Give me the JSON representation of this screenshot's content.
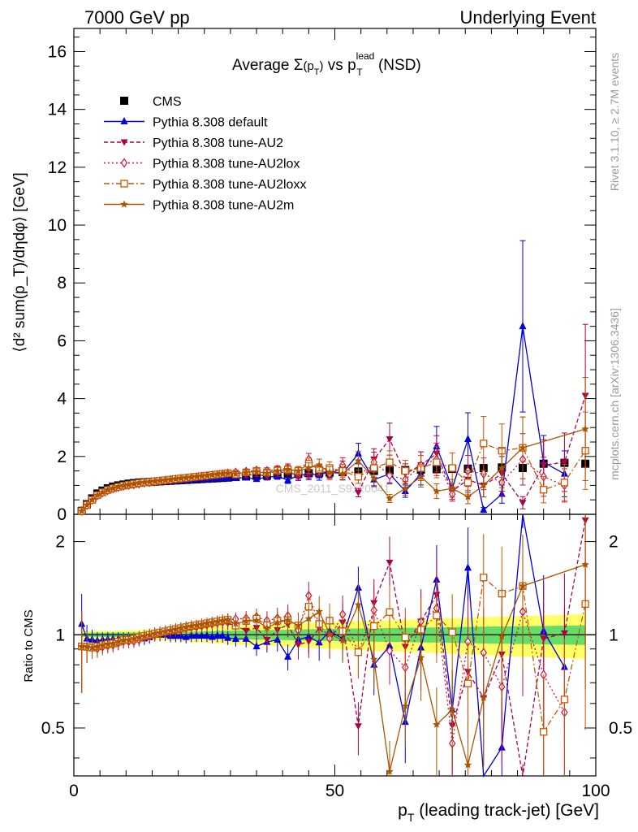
{
  "header": {
    "left": "7000 GeV pp",
    "right": "Underlying Event"
  },
  "side_labels": {
    "rivet": "Rivet 3.1.10, ≥ 2.7M events",
    "mcplots": "mcplots.cern.ch [arXiv:1306.3436]"
  },
  "chart_data": {
    "type": "scatter",
    "title": {
      "prefix": "Average ",
      "sigma": "Σ",
      "sigma_arg": "(p",
      "sigma_sub": "T",
      "sigma_close": ")",
      "vs": " vs p",
      "p_sup": "lead",
      "p_sub": "T",
      "suffix": " (NSD)"
    },
    "watermark": "CMS_2011_S9120041",
    "xlabel": {
      "main": "p",
      "sub": "T",
      "rest": " (leading track-jet) [GeV]"
    },
    "ylabel_main": "⟨d² sum(p_T)/dηdφ⟩ [GeV]",
    "ylabel_ratio": "Ratio to CMS",
    "xlim": [
      0,
      100
    ],
    "ylim_main": [
      0,
      16.8
    ],
    "ylim_ratio": [
      0.35,
      2.45
    ],
    "x_ticks": [
      "0",
      "50",
      "100"
    ],
    "y_ticks_main": [
      "0",
      "2",
      "4",
      "6",
      "8",
      "10",
      "12",
      "14",
      "16"
    ],
    "y_ticks_ratio": [
      "0.5",
      "1",
      "2"
    ],
    "legend_position": "top-left",
    "band_colors": {
      "stat": "#66dd66",
      "total": "#ffff66"
    },
    "x": [
      1.5,
      2.5,
      3.5,
      4.5,
      5.5,
      6.5,
      7.5,
      8.5,
      9.5,
      10.5,
      11.5,
      12.5,
      13.5,
      14.5,
      15.5,
      16.5,
      17.5,
      18.5,
      19.5,
      20.5,
      21.5,
      22.5,
      23.5,
      24.5,
      25.5,
      26.5,
      27.5,
      28.5,
      29.5,
      31,
      33,
      35,
      37,
      39,
      41,
      43,
      45,
      47,
      49,
      51.5,
      54.5,
      57.5,
      60.5,
      63.5,
      66.5,
      69.5,
      72.5,
      75.5,
      78.5,
      82,
      86,
      90,
      94,
      98
    ],
    "series": [
      {
        "name": "CMS",
        "color": "#000000",
        "marker": "square-filled",
        "line": "none",
        "values": [
          0.12,
          0.35,
          0.55,
          0.72,
          0.82,
          0.9,
          0.96,
          1.0,
          1.03,
          1.06,
          1.08,
          1.1,
          1.11,
          1.12,
          1.13,
          1.14,
          1.15,
          1.16,
          1.17,
          1.18,
          1.19,
          1.2,
          1.21,
          1.22,
          1.23,
          1.24,
          1.25,
          1.26,
          1.27,
          1.29,
          1.31,
          1.33,
          1.35,
          1.37,
          1.39,
          1.4,
          1.42,
          1.43,
          1.44,
          1.46,
          1.48,
          1.5,
          1.52,
          1.53,
          1.54,
          1.56,
          1.57,
          1.58,
          1.6,
          1.62,
          1.6,
          1.75,
          1.78,
          1.75
        ]
      },
      {
        "name": "Pythia 8.308 default",
        "color": "#0000dd",
        "marker": "triangle-up-filled",
        "line": "solid",
        "values": [
          0.13,
          0.34,
          0.53,
          0.69,
          0.79,
          0.87,
          0.93,
          0.97,
          1.0,
          1.03,
          1.05,
          1.07,
          1.08,
          1.1,
          1.13,
          1.14,
          1.15,
          1.15,
          1.16,
          1.17,
          1.17,
          1.19,
          1.2,
          1.21,
          1.22,
          1.22,
          1.24,
          1.25,
          1.24,
          1.25,
          1.27,
          1.22,
          1.28,
          1.32,
          1.18,
          1.35,
          1.4,
          1.35,
          1.48,
          1.42,
          2.1,
          1.2,
          1.4,
          0.8,
          1.4,
          2.35,
          0.9,
          2.6,
          0.15,
          0.7,
          6.5,
          1.8,
          1.4,
          null
        ]
      },
      {
        "name": "Pythia 8.308 tune-AU2",
        "color": "#aa0044",
        "marker": "triangle-down-filled",
        "line": "dashed",
        "values": [
          0.11,
          0.32,
          0.5,
          0.66,
          0.76,
          0.84,
          0.9,
          0.94,
          0.98,
          1.01,
          1.04,
          1.07,
          1.09,
          1.11,
          1.13,
          1.15,
          1.17,
          1.18,
          1.2,
          1.22,
          1.24,
          1.26,
          1.27,
          1.29,
          1.31,
          1.33,
          1.35,
          1.37,
          1.38,
          1.38,
          1.35,
          1.4,
          1.3,
          1.42,
          1.5,
          1.3,
          1.35,
          1.5,
          1.4,
          1.6,
          0.75,
          1.9,
          2.6,
          1.4,
          1.7,
          2.1,
          0.8,
          1.2,
          1.0,
          1.4,
          0.4,
          1.7,
          1.8,
          4.1
        ]
      },
      {
        "name": "Pythia 8.308 tune-AU2lox",
        "color": "#cc1144",
        "marker": "diamond-open",
        "line": "dotted",
        "values": [
          0.11,
          0.32,
          0.5,
          0.65,
          0.75,
          0.83,
          0.89,
          0.94,
          0.98,
          1.01,
          1.03,
          1.06,
          1.09,
          1.11,
          1.13,
          1.15,
          1.17,
          1.19,
          1.21,
          1.23,
          1.25,
          1.27,
          1.29,
          1.31,
          1.33,
          1.35,
          1.37,
          1.39,
          1.42,
          1.45,
          1.48,
          1.52,
          1.5,
          1.55,
          1.6,
          1.45,
          1.9,
          1.55,
          1.4,
          1.7,
          1.3,
          1.8,
          1.35,
          1.2,
          1.7,
          1.9,
          0.7,
          1.5,
          1.4,
          1.1,
          1.9,
          1.3,
          1.0,
          null
        ]
      },
      {
        "name": "Pythia 8.308 tune-AU2loxx",
        "color": "#cc5500",
        "marker": "square-open",
        "line": "dashdot",
        "values": [
          0.11,
          0.32,
          0.5,
          0.66,
          0.76,
          0.84,
          0.9,
          0.95,
          0.99,
          1.02,
          1.05,
          1.08,
          1.1,
          1.12,
          1.14,
          1.16,
          1.18,
          1.2,
          1.22,
          1.24,
          1.26,
          1.28,
          1.3,
          1.32,
          1.34,
          1.36,
          1.38,
          1.4,
          1.42,
          1.38,
          1.45,
          1.5,
          1.45,
          1.52,
          1.55,
          1.5,
          1.75,
          1.55,
          1.6,
          1.5,
          1.3,
          1.6,
          1.8,
          1.5,
          1.6,
          1.8,
          1.6,
          1.1,
          2.45,
          2.2,
          2.3,
          0.85,
          1.1,
          2.2
        ]
      },
      {
        "name": "Pythia 8.308 tune-AU2m",
        "color": "#aa5500",
        "marker": "star",
        "line": "solid",
        "values": [
          0.11,
          0.32,
          0.5,
          0.66,
          0.76,
          0.84,
          0.9,
          0.95,
          0.99,
          1.02,
          1.05,
          1.08,
          1.1,
          1.12,
          1.14,
          1.16,
          1.18,
          1.2,
          1.22,
          1.24,
          1.26,
          1.28,
          1.3,
          1.32,
          1.34,
          1.36,
          1.38,
          1.4,
          1.42,
          1.4,
          1.45,
          1.48,
          1.42,
          1.5,
          1.55,
          1.5,
          1.6,
          1.7,
          1.45,
          1.4,
          1.85,
          1.25,
          0.55,
          0.9,
          1.3,
          0.8,
          0.9,
          0.6,
          1.0,
          1.6,
          2.3,
          null,
          null,
          2.95
        ]
      }
    ]
  }
}
